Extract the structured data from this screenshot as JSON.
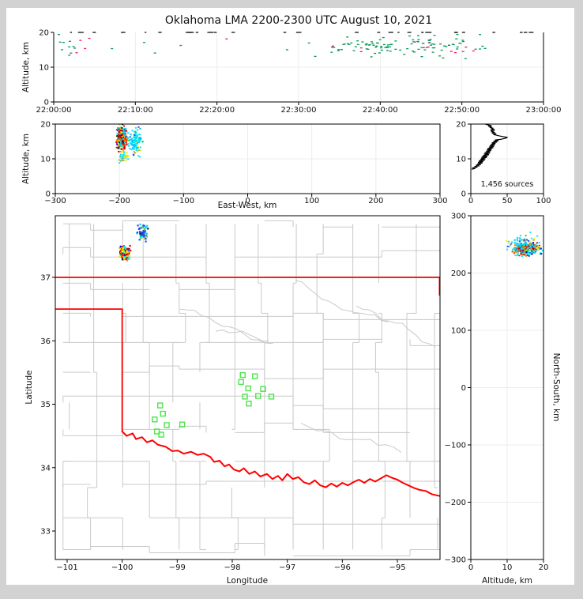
{
  "title": "Oklahoma LMA 2200-2300 UTC August 10, 2021",
  "colors": {
    "background": "#d2d2d2",
    "figure_bg": "#ffffff",
    "county_line": "#c9c9c9",
    "state_border": "#ff0000",
    "grid": "#ececec",
    "station": "#4ce44c",
    "axis": "#000000",
    "hist_line": "#000000"
  },
  "palettes": {
    "rainbow": [
      [
        "#dd0000",
        0.16
      ],
      [
        "#ff2200",
        0.08
      ],
      [
        "#990000",
        0.05
      ],
      [
        "#ff7700",
        0.12
      ],
      [
        "#ffdd00",
        0.1
      ],
      [
        "#ffff00",
        0.08
      ],
      [
        "#00e5ff",
        0.18
      ],
      [
        "#00bbee",
        0.05
      ],
      [
        "#2244ff",
        0.07
      ],
      [
        "#0000cc",
        0.04
      ],
      [
        "#111111",
        0.05
      ],
      [
        "#33cc33",
        0.02
      ]
    ],
    "cyanish": [
      [
        "#00e5ff",
        0.55
      ],
      [
        "#00bbee",
        0.15
      ],
      [
        "#ffee00",
        0.12
      ],
      [
        "#2244ff",
        0.1
      ],
      [
        "#33cc33",
        0.04
      ],
      [
        "#ff8800",
        0.04
      ]
    ],
    "blueish": [
      [
        "#2244ff",
        0.45
      ],
      [
        "#00ccff",
        0.3
      ],
      [
        "#ffee00",
        0.1
      ],
      [
        "#111111",
        0.05
      ],
      [
        "#33cc33",
        0.1
      ]
    ],
    "lowmix": [
      [
        "#ffee00",
        0.4
      ],
      [
        "#00e5ff",
        0.4
      ],
      [
        "#ff8800",
        0.2
      ]
    ],
    "timegreen": [
      [
        "#009955",
        0.9
      ],
      [
        "#ee1177",
        0.1
      ]
    ],
    "black": [
      [
        "#111111",
        1.0
      ]
    ]
  },
  "chart_data": {
    "type": "scatter",
    "figure": "XLMA-style lightning source composite (time-height, cross sections, plan map, altitude histogram)",
    "panels": {
      "time_height": {
        "type": "scatter",
        "ylabel": "Altitude, km",
        "ylim": [
          0,
          20
        ],
        "y_tick_values": [
          0,
          10,
          20
        ],
        "y_tick_labels": [
          "0",
          "10",
          "20"
        ],
        "xlim_minutes": [
          0,
          60
        ],
        "x_tick_values": [
          0,
          10,
          20,
          30,
          40,
          50,
          60
        ],
        "x_tick_labels": [
          "22:00:00",
          "22:10:00",
          "22:20:00",
          "22:30:00",
          "22:40:00",
          "22:50:00",
          "23:00:00"
        ],
        "clusters": [
          {
            "space": "time",
            "mode": "uniform",
            "x": [
              0,
              3.5
            ],
            "y": [
              13,
              19.5
            ],
            "n": 12,
            "palette": "timegreen"
          },
          {
            "space": "time",
            "mode": "uniform",
            "x": [
              3.5,
              26
            ],
            "y": [
              13,
              20
            ],
            "n": 7,
            "palette": "timegreen"
          },
          {
            "space": "time",
            "mode": "gauss",
            "cx": 43,
            "sx": 10,
            "x": [
              26,
              60
            ],
            "cy": 16,
            "sy": 3,
            "y": [
              10,
              20
            ],
            "n": 120,
            "palette": "timegreen"
          },
          {
            "space": "time",
            "mode": "uniform",
            "x": [
              0,
              60
            ],
            "y": [
              20,
              20
            ],
            "n": 30,
            "palette": "black",
            "dash": true
          }
        ]
      },
      "ew_height": {
        "type": "scatter",
        "ylabel": "Altitude, km",
        "xlabel": "East-West, km",
        "ylim": [
          0,
          20
        ],
        "xlim": [
          -300,
          300
        ],
        "y_tick_values": [
          0,
          10,
          20
        ],
        "y_tick_labels": [
          "0",
          "10",
          "20"
        ],
        "x_tick_values": [
          -300,
          -200,
          -100,
          0,
          100,
          200,
          300
        ],
        "x_tick_labels": [
          "−300",
          "−200",
          "−100",
          "0",
          "100",
          "200",
          "300"
        ],
        "clusters": [
          {
            "space": "ew",
            "mode": "gauss",
            "cx": -196,
            "sx": 7,
            "x": [
              -207,
              -180
            ],
            "cy": 16,
            "sy": 3,
            "y": [
              8.2,
              20
            ],
            "n": 320,
            "palette": "rainbow"
          },
          {
            "space": "ew",
            "mode": "gauss",
            "cx": -176,
            "sx": 10,
            "x": [
              -195,
              -152
            ],
            "cy": 15,
            "sy": 3.5,
            "y": [
              8,
              20
            ],
            "n": 110,
            "palette": "cyanish"
          },
          {
            "space": "ew",
            "mode": "gauss",
            "cx": -193,
            "sx": 6,
            "x": [
              -205,
              -172
            ],
            "cy": 10.5,
            "sy": 1.3,
            "y": [
              8,
              12.5
            ],
            "n": 55,
            "palette": "lowmix"
          }
        ]
      },
      "source_histogram": {
        "type": "line",
        "annotation": "1,456 sources",
        "xlim": [
          0,
          100
        ],
        "x_tick_values": [
          0,
          50,
          100
        ],
        "x_tick_labels": [
          "0",
          "50",
          "100"
        ],
        "y_tick_values": [
          0,
          10,
          20
        ],
        "y_tick_labels": [
          "0",
          "10",
          "20"
        ],
        "profile_alt_count": [
          [
            7.0,
            1
          ],
          [
            7.2,
            6
          ],
          [
            7.4,
            2
          ],
          [
            7.6,
            9
          ],
          [
            7.8,
            5
          ],
          [
            8.0,
            12
          ],
          [
            8.2,
            7
          ],
          [
            8.4,
            14
          ],
          [
            8.6,
            9
          ],
          [
            8.8,
            16
          ],
          [
            9.0,
            10
          ],
          [
            9.2,
            17
          ],
          [
            9.4,
            11
          ],
          [
            9.6,
            19
          ],
          [
            9.8,
            13
          ],
          [
            10.0,
            20
          ],
          [
            10.2,
            14
          ],
          [
            10.4,
            22
          ],
          [
            10.6,
            15
          ],
          [
            10.8,
            23
          ],
          [
            11.0,
            17
          ],
          [
            11.2,
            25
          ],
          [
            11.4,
            18
          ],
          [
            11.6,
            26
          ],
          [
            11.8,
            19
          ],
          [
            12.0,
            27
          ],
          [
            12.2,
            21
          ],
          [
            12.4,
            28
          ],
          [
            12.6,
            22
          ],
          [
            12.8,
            29
          ],
          [
            13.0,
            23
          ],
          [
            13.2,
            31
          ],
          [
            13.4,
            25
          ],
          [
            13.6,
            32
          ],
          [
            13.8,
            26
          ],
          [
            14.0,
            33
          ],
          [
            14.2,
            28
          ],
          [
            14.4,
            34
          ],
          [
            14.6,
            29
          ],
          [
            14.8,
            36
          ],
          [
            15.0,
            31
          ],
          [
            15.2,
            38
          ],
          [
            15.4,
            33
          ],
          [
            15.6,
            41
          ],
          [
            15.8,
            45
          ],
          [
            16.0,
            49
          ],
          [
            16.2,
            50
          ],
          [
            16.4,
            44
          ],
          [
            16.6,
            39
          ],
          [
            16.8,
            35
          ],
          [
            17.0,
            31
          ],
          [
            17.2,
            35
          ],
          [
            17.4,
            29
          ],
          [
            17.6,
            33
          ],
          [
            17.8,
            28
          ],
          [
            18.0,
            31
          ],
          [
            18.2,
            27
          ],
          [
            18.4,
            33
          ],
          [
            18.6,
            28
          ],
          [
            18.8,
            31
          ],
          [
            19.0,
            26
          ],
          [
            19.2,
            29
          ],
          [
            19.4,
            24
          ],
          [
            19.6,
            27
          ],
          [
            19.8,
            23
          ],
          [
            20.0,
            20
          ]
        ]
      },
      "map": {
        "type": "scatter",
        "xlabel": "Longitude",
        "ylabel": "Latitude",
        "x_tick_values": [
          -101,
          -100,
          -99,
          -98,
          -97,
          -96,
          -95
        ],
        "x_tick_labels": [
          "−101",
          "−100",
          "−99",
          "−98",
          "−97",
          "−96",
          "−95"
        ],
        "y_tick_values": [
          33,
          34,
          35,
          36,
          37
        ],
        "y_tick_labels": [
          "33",
          "34",
          "35",
          "36",
          "37"
        ],
        "lon_range": [
          -101.215,
          -94.22
        ],
        "lat_range": [
          32.55,
          37.97
        ],
        "borders": {
          "kansas_line": [
            [
              -101.215,
              37
            ],
            [
              -94.22,
              37
            ]
          ],
          "panhandle": [
            [
              -101.215,
              36.5
            ],
            [
              -100,
              36.5
            ],
            [
              -100,
              34.57
            ]
          ],
          "east_border": [
            [
              -94.235,
              37
            ],
            [
              -94.235,
              36.72
            ]
          ],
          "red_river": [
            [
              -100,
              34.57
            ],
            [
              -99.92,
              34.5
            ],
            [
              -99.81,
              34.54
            ],
            [
              -99.75,
              34.45
            ],
            [
              -99.64,
              34.48
            ],
            [
              -99.55,
              34.4
            ],
            [
              -99.45,
              34.43
            ],
            [
              -99.35,
              34.36
            ],
            [
              -99.21,
              34.33
            ],
            [
              -99.09,
              34.26
            ],
            [
              -98.99,
              34.27
            ],
            [
              -98.88,
              34.22
            ],
            [
              -98.75,
              34.25
            ],
            [
              -98.63,
              34.2
            ],
            [
              -98.52,
              34.22
            ],
            [
              -98.4,
              34.17
            ],
            [
              -98.33,
              34.09
            ],
            [
              -98.23,
              34.11
            ],
            [
              -98.14,
              34.02
            ],
            [
              -98.06,
              34.05
            ],
            [
              -97.97,
              33.97
            ],
            [
              -97.87,
              33.94
            ],
            [
              -97.79,
              33.99
            ],
            [
              -97.69,
              33.9
            ],
            [
              -97.59,
              33.94
            ],
            [
              -97.49,
              33.86
            ],
            [
              -97.37,
              33.9
            ],
            [
              -97.27,
              33.82
            ],
            [
              -97.17,
              33.87
            ],
            [
              -97.09,
              33.8
            ],
            [
              -97.0,
              33.9
            ],
            [
              -96.9,
              33.82
            ],
            [
              -96.8,
              33.85
            ],
            [
              -96.7,
              33.77
            ],
            [
              -96.6,
              33.74
            ],
            [
              -96.5,
              33.8
            ],
            [
              -96.4,
              33.72
            ],
            [
              -96.3,
              33.69
            ],
            [
              -96.2,
              33.75
            ],
            [
              -96.1,
              33.7
            ],
            [
              -96.0,
              33.76
            ],
            [
              -95.9,
              33.72
            ],
            [
              -95.8,
              33.77
            ],
            [
              -95.7,
              33.81
            ],
            [
              -95.6,
              33.76
            ],
            [
              -95.5,
              33.82
            ],
            [
              -95.4,
              33.78
            ],
            [
              -95.3,
              33.83
            ],
            [
              -95.2,
              33.88
            ],
            [
              -95.1,
              33.84
            ],
            [
              -95.0,
              33.81
            ],
            [
              -94.9,
              33.76
            ],
            [
              -94.8,
              33.72
            ],
            [
              -94.7,
              33.68
            ],
            [
              -94.6,
              33.65
            ],
            [
              -94.48,
              33.63
            ],
            [
              -94.37,
              33.58
            ],
            [
              -94.22,
              33.55
            ]
          ]
        },
        "stations": [
          [
            -99.31,
            34.98
          ],
          [
            -99.26,
            34.85
          ],
          [
            -99.41,
            34.76
          ],
          [
            -99.19,
            34.67
          ],
          [
            -99.37,
            34.57
          ],
          [
            -99.29,
            34.52
          ],
          [
            -98.91,
            34.68
          ],
          [
            -97.81,
            35.46
          ],
          [
            -97.59,
            35.44
          ],
          [
            -97.84,
            35.35
          ],
          [
            -97.71,
            35.25
          ],
          [
            -97.77,
            35.12
          ],
          [
            -97.44,
            35.24
          ],
          [
            -97.53,
            35.13
          ],
          [
            -97.7,
            35.01
          ],
          [
            -97.29,
            35.12
          ]
        ],
        "clusters": [
          {
            "space": "map",
            "mode": "gauss",
            "cx": -99.95,
            "sx": 0.07,
            "x": [
              -100.12,
              -99.75
            ],
            "cy": 37.38,
            "sy": 0.08,
            "y": [
              37.2,
              37.58
            ],
            "n": 330,
            "palette": "rainbow"
          },
          {
            "space": "map",
            "mode": "gauss",
            "cx": -99.62,
            "sx": 0.1,
            "x": [
              -99.85,
              -99.35
            ],
            "cy": 37.7,
            "sy": 0.1,
            "y": [
              37.5,
              37.96
            ],
            "n": 60,
            "palette": "blueish"
          }
        ]
      },
      "north_south": {
        "type": "scatter",
        "ylabel_right": "North-South, km",
        "xlabel": "Altitude, km",
        "xlim": [
          0,
          20
        ],
        "ylim": [
          -300,
          300
        ],
        "x_tick_values": [
          0,
          10,
          20
        ],
        "x_tick_labels": [
          "0",
          "10",
          "20"
        ],
        "y_tick_values": [
          300,
          200,
          100,
          0,
          -100,
          -200,
          -300
        ],
        "y_tick_labels": [
          "300",
          "200",
          "100",
          "0",
          "−100",
          "−200",
          "−300"
        ],
        "clusters": [
          {
            "space": "ns",
            "mode": "gauss",
            "cx": 15.5,
            "sx": 3,
            "x": [
              7.5,
              20
            ],
            "cy": 242,
            "sy": 9,
            "y": [
              220,
              265
            ],
            "n": 330,
            "palette": "rainbow"
          },
          {
            "space": "ns",
            "mode": "gauss",
            "cx": 14,
            "sx": 4,
            "x": [
              7,
              20
            ],
            "cy": 250,
            "sy": 16,
            "y": [
              215,
              299
            ],
            "n": 95,
            "palette": "cyanish"
          }
        ]
      }
    }
  }
}
